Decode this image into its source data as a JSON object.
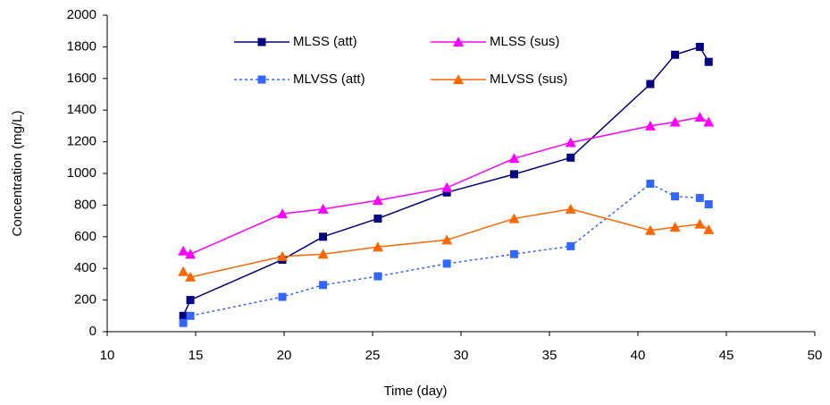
{
  "chart_data": {
    "type": "line",
    "x_label": "Time (day)",
    "y_label": "Concentration (mg/L)",
    "x": [
      14.3,
      14.7,
      19.9,
      22.2,
      25.3,
      29.2,
      33.0,
      36.2,
      40.7,
      42.1,
      43.5,
      44.0
    ],
    "series": [
      {
        "name": "MLSS (att)",
        "color": "#000080",
        "marker": "square",
        "dash": false,
        "values": [
          100,
          200,
          455,
          600,
          715,
          880,
          995,
          1100,
          1565,
          1750,
          1800,
          1705
        ]
      },
      {
        "name": "MLSS (sus)",
        "color": "#ff00ff",
        "marker": "triangle",
        "dash": false,
        "values": [
          510,
          490,
          745,
          775,
          830,
          910,
          1095,
          1195,
          1300,
          1325,
          1355,
          1325
        ]
      },
      {
        "name": "MLVSS (att)",
        "color": "#3366ff",
        "marker": "square",
        "dash": true,
        "values": [
          55,
          100,
          220,
          295,
          350,
          430,
          490,
          540,
          935,
          855,
          845,
          805
        ]
      },
      {
        "name": "MLVSS (sus)",
        "color": "#ff6600",
        "marker": "triangle",
        "dash": false,
        "values": [
          380,
          345,
          475,
          490,
          535,
          580,
          715,
          775,
          640,
          660,
          680,
          645
        ]
      }
    ],
    "xlim": [
      10,
      50
    ],
    "xticks": [
      10,
      15,
      20,
      25,
      30,
      35,
      40,
      45,
      50
    ],
    "ylim": [
      0,
      2000
    ],
    "yticks": [
      0,
      200,
      400,
      600,
      800,
      1000,
      1200,
      1400,
      1600,
      1800,
      2000
    ],
    "grid": false
  }
}
